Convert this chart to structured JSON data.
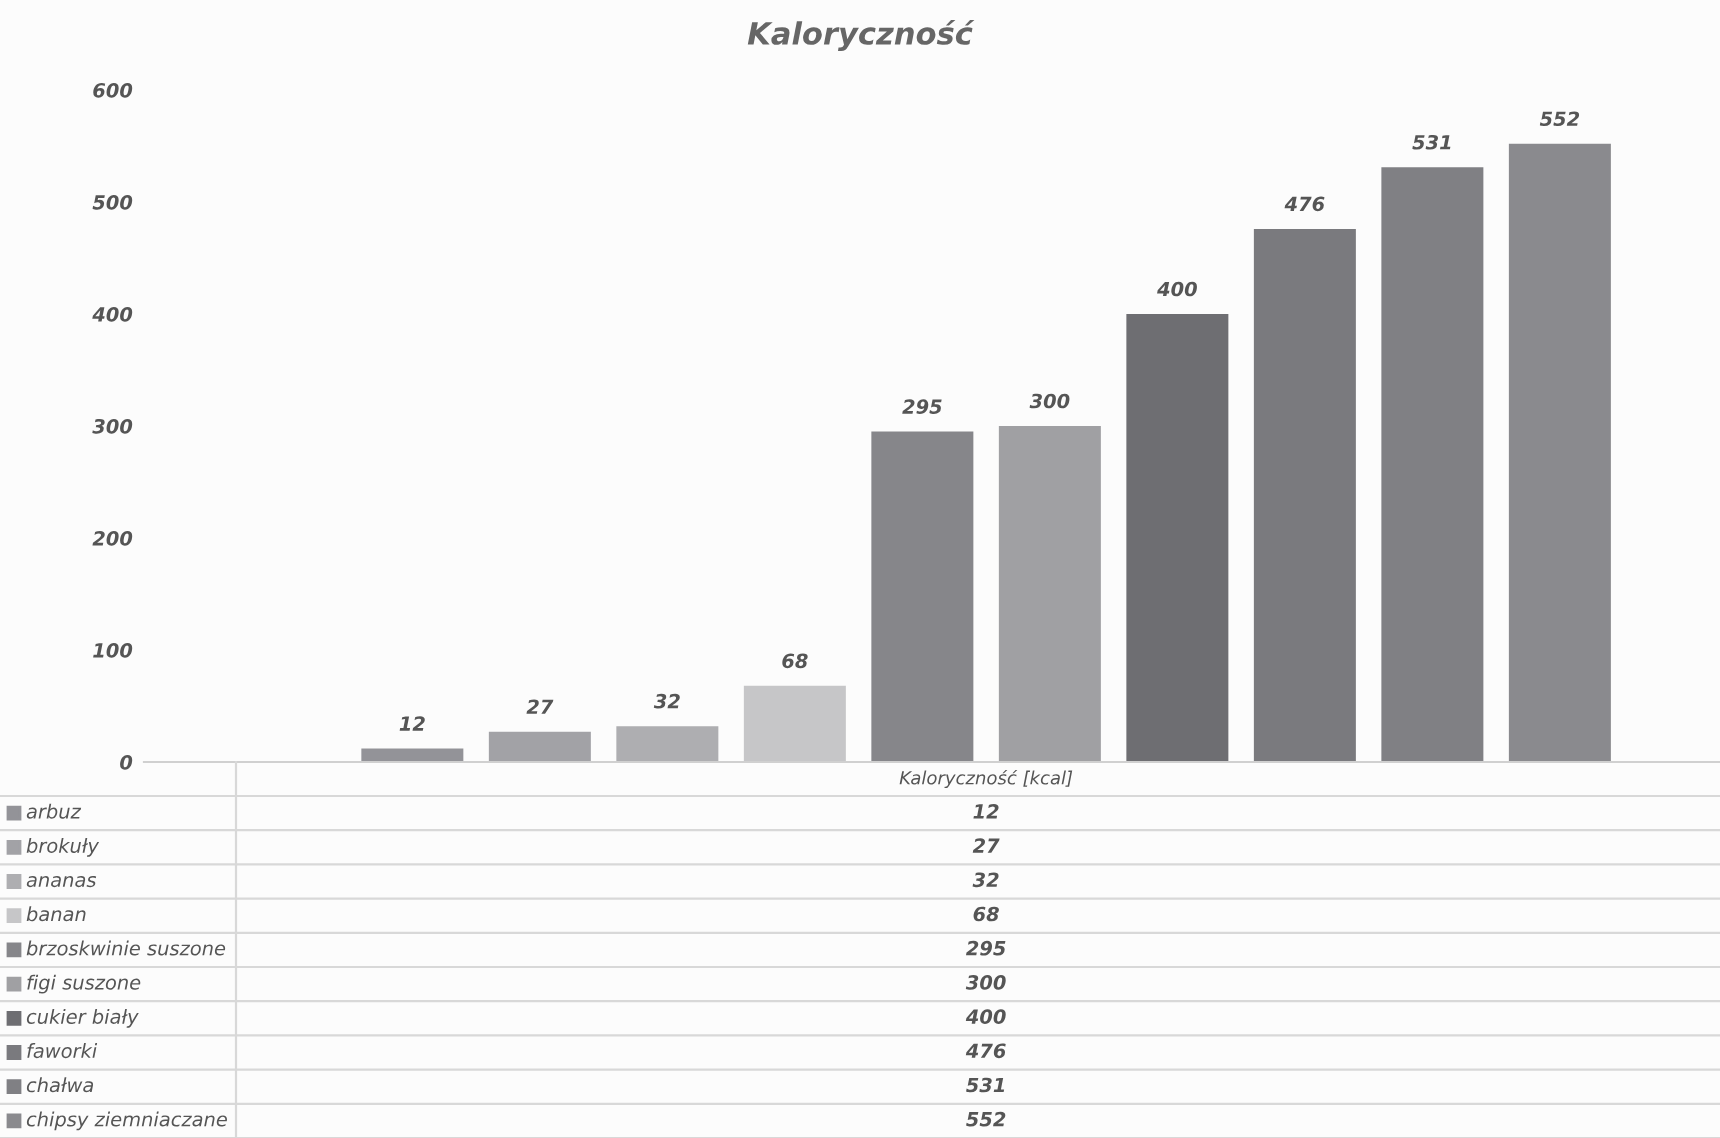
{
  "chart_data": {
    "type": "bar",
    "title": "Kaloryczność",
    "categories": [
      "Kaloryczność [kcal]"
    ],
    "series": [
      {
        "name": "arbuz",
        "color": "#939398",
        "values": [
          12
        ],
        "value_labels": [
          "12"
        ]
      },
      {
        "name": "brokuły",
        "color": "#a2a2a6",
        "values": [
          27
        ],
        "value_labels": [
          "27"
        ]
      },
      {
        "name": "ananas",
        "color": "#aeaeb1",
        "values": [
          32
        ],
        "value_labels": [
          "32"
        ]
      },
      {
        "name": "banan",
        "color": "#c6c6c8",
        "values": [
          68
        ],
        "value_labels": [
          "68"
        ]
      },
      {
        "name": "brzoskwinie suszone",
        "color": "#86868a",
        "values": [
          295
        ],
        "value_labels": [
          "295"
        ]
      },
      {
        "name": "figi suszone",
        "color": "#a0a0a3",
        "values": [
          300
        ],
        "value_labels": [
          "300"
        ]
      },
      {
        "name": "cukier biały",
        "color": "#6e6e72",
        "values": [
          400
        ],
        "value_labels": [
          "400"
        ]
      },
      {
        "name": "faworki",
        "color": "#7a7a7e",
        "values": [
          476
        ],
        "value_labels": [
          "476"
        ]
      },
      {
        "name": "chałwa",
        "color": "#808084",
        "values": [
          531
        ],
        "value_labels": [
          "531"
        ]
      },
      {
        "name": "chipsy ziemniaczane",
        "color": "#8a8a8e",
        "values": [
          552
        ],
        "value_labels": [
          "552"
        ]
      }
    ],
    "ylim": [
      0,
      600
    ],
    "yticks": [
      0,
      100,
      200,
      300,
      400,
      500,
      600
    ],
    "annotations": [
      "12",
      "27",
      "32",
      "68",
      "295",
      "300",
      "400",
      "476",
      "531",
      "552"
    ],
    "grid": false,
    "legend": "bottom left"
  }
}
